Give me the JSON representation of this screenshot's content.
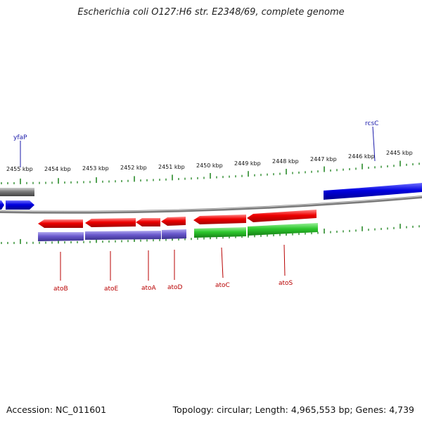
{
  "title": "Escherichia coli O127:H6 str. E2348/69, complete genome",
  "footer": {
    "accession": "Accession: NC_011601",
    "summary": "Topology: circular; Length: 4,965,553 bp; Genes: 4,739"
  },
  "kbp_labels": [
    "2455 kbp",
    "2454 kbp",
    "2453 kbp",
    "2452 kbp",
    "2451 kbp",
    "2450 kbp",
    "2449 kbp",
    "2448 kbp",
    "2447 kbp",
    "2446 kbp",
    "2445 kbp"
  ],
  "genes": [
    {
      "name": "yfaP",
      "color": "#1a1aaa"
    },
    {
      "name": "rcsC",
      "color": "#1a1aaa"
    },
    {
      "name": "atoB",
      "color": "#b80000"
    },
    {
      "name": "atoE",
      "color": "#b80000"
    },
    {
      "name": "atoA",
      "color": "#b80000"
    },
    {
      "name": "atoD",
      "color": "#b80000"
    },
    {
      "name": "atoC",
      "color": "#b80000"
    },
    {
      "name": "atoS",
      "color": "#b80000"
    }
  ],
  "colors": {
    "cds_red": "#e00000",
    "cds_blue": "#0000dd",
    "grey": "#777777",
    "purple": "#6a5acd",
    "green": "#33cc33",
    "tick": "#2a8a2a"
  }
}
